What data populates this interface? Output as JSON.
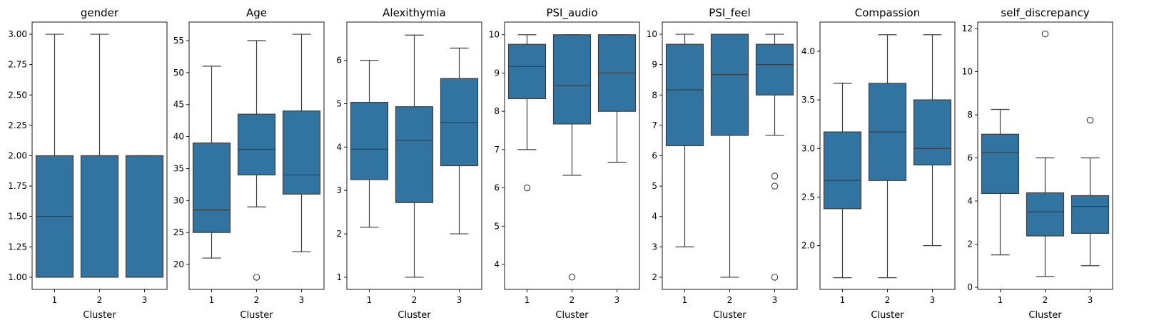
{
  "chart_data": [
    {
      "type": "box",
      "title": "gender",
      "xlabel": "Cluster",
      "categories": [
        "1",
        "2",
        "3"
      ],
      "ylim": [
        0.9,
        3.1
      ],
      "yticks": [
        1.0,
        1.25,
        1.5,
        1.75,
        2.0,
        2.25,
        2.5,
        2.75,
        3.0
      ],
      "ytick_labels": [
        "1.00",
        "1.25",
        "1.50",
        "1.75",
        "2.00",
        "2.25",
        "2.50",
        "2.75",
        "3.00"
      ],
      "boxes": [
        {
          "whislo": 1.0,
          "q1": 1.0,
          "med": 1.5,
          "q3": 2.0,
          "whishi": 3.0,
          "fliers": []
        },
        {
          "whislo": 1.0,
          "q1": 1.0,
          "med": 2.0,
          "q3": 2.0,
          "whishi": 3.0,
          "fliers": []
        },
        {
          "whislo": 1.0,
          "q1": 1.0,
          "med": 2.0,
          "q3": 2.0,
          "whishi": 2.0,
          "fliers": []
        }
      ]
    },
    {
      "type": "box",
      "title": "Age",
      "xlabel": "Cluster",
      "categories": [
        "1",
        "2",
        "3"
      ],
      "ylim": [
        16.1,
        57.9
      ],
      "yticks": [
        20,
        25,
        30,
        35,
        40,
        45,
        50,
        55
      ],
      "ytick_labels": [
        "20",
        "25",
        "30",
        "35",
        "40",
        "45",
        "50",
        "55"
      ],
      "boxes": [
        {
          "whislo": 21,
          "q1": 25,
          "med": 28.5,
          "q3": 39,
          "whishi": 51,
          "fliers": []
        },
        {
          "whislo": 29,
          "q1": 34,
          "med": 38,
          "q3": 43.5,
          "whishi": 55,
          "fliers": [
            18
          ]
        },
        {
          "whislo": 22,
          "q1": 31,
          "med": 34,
          "q3": 44,
          "whishi": 56,
          "fliers": []
        }
      ]
    },
    {
      "type": "box",
      "title": "Alexithymia",
      "xlabel": "Cluster",
      "categories": [
        "1",
        "2",
        "3"
      ],
      "ylim": [
        0.72,
        6.88
      ],
      "yticks": [
        1,
        2,
        3,
        4,
        5,
        6
      ],
      "ytick_labels": [
        "1",
        "2",
        "3",
        "4",
        "5",
        "6"
      ],
      "boxes": [
        {
          "whislo": 2.15,
          "q1": 3.25,
          "med": 3.95,
          "q3": 5.03,
          "whishi": 6.0,
          "fliers": []
        },
        {
          "whislo": 1.0,
          "q1": 2.72,
          "med": 4.15,
          "q3": 4.93,
          "whishi": 6.58,
          "fliers": []
        },
        {
          "whislo": 2.0,
          "q1": 3.57,
          "med": 4.57,
          "q3": 5.58,
          "whishi": 6.28,
          "fliers": []
        }
      ]
    },
    {
      "type": "box",
      "title": "PSI_audio",
      "xlabel": "Cluster",
      "categories": [
        "1",
        "2",
        "3"
      ],
      "ylim": [
        3.35,
        10.33
      ],
      "yticks": [
        4,
        5,
        6,
        7,
        8,
        9,
        10
      ],
      "ytick_labels": [
        "4",
        "5",
        "6",
        "7",
        "8",
        "9",
        "10"
      ],
      "boxes": [
        {
          "whislo": 7.0,
          "q1": 8.33,
          "med": 9.17,
          "q3": 9.75,
          "whishi": 10.0,
          "fliers": [
            6.0
          ]
        },
        {
          "whislo": 6.33,
          "q1": 7.67,
          "med": 8.67,
          "q3": 10.0,
          "whishi": 10.0,
          "fliers": [
            3.67
          ]
        },
        {
          "whislo": 6.67,
          "q1": 8.0,
          "med": 9.0,
          "q3": 10.0,
          "whishi": 10.0,
          "fliers": []
        }
      ]
    },
    {
      "type": "box",
      "title": "PSI_feel",
      "xlabel": "Cluster",
      "categories": [
        "1",
        "2",
        "3"
      ],
      "ylim": [
        1.6,
        10.4
      ],
      "yticks": [
        2,
        3,
        4,
        5,
        6,
        7,
        8,
        9,
        10
      ],
      "ytick_labels": [
        "2",
        "3",
        "4",
        "5",
        "6",
        "7",
        "8",
        "9",
        "10"
      ],
      "boxes": [
        {
          "whislo": 3.0,
          "q1": 6.33,
          "med": 8.17,
          "q3": 9.67,
          "whishi": 10.0,
          "fliers": []
        },
        {
          "whislo": 2.0,
          "q1": 6.67,
          "med": 8.67,
          "q3": 10.0,
          "whishi": 10.0,
          "fliers": []
        },
        {
          "whislo": 6.67,
          "q1": 8.0,
          "med": 9.0,
          "q3": 9.67,
          "whishi": 10.0,
          "fliers": [
            5.33,
            5.0,
            2.0
          ]
        }
      ]
    },
    {
      "type": "box",
      "title": "Compassion",
      "xlabel": "Cluster",
      "categories": [
        "1",
        "2",
        "3"
      ],
      "ylim": [
        1.55,
        4.3
      ],
      "yticks": [
        2.0,
        2.5,
        3.0,
        3.5,
        4.0
      ],
      "ytick_labels": [
        "2.0",
        "2.5",
        "3.0",
        "3.5",
        "4.0"
      ],
      "boxes": [
        {
          "whislo": 1.67,
          "q1": 2.38,
          "med": 2.67,
          "q3": 3.17,
          "whishi": 3.67,
          "fliers": []
        },
        {
          "whislo": 1.67,
          "q1": 2.67,
          "med": 3.17,
          "q3": 3.67,
          "whishi": 4.17,
          "fliers": []
        },
        {
          "whislo": 2.0,
          "q1": 2.83,
          "med": 3.0,
          "q3": 3.5,
          "whishi": 4.17,
          "fliers": []
        }
      ]
    },
    {
      "type": "box",
      "title": "self_discrepancy",
      "xlabel": "Cluster",
      "categories": [
        "1",
        "2",
        "3"
      ],
      "ylim": [
        -0.1,
        12.3
      ],
      "yticks": [
        0,
        2,
        4,
        6,
        8,
        10,
        12
      ],
      "ytick_labels": [
        "0",
        "2",
        "4",
        "6",
        "8",
        "10",
        "12"
      ],
      "boxes": [
        {
          "whislo": 1.5,
          "q1": 4.35,
          "med": 6.25,
          "q3": 7.1,
          "whishi": 8.25,
          "fliers": []
        },
        {
          "whislo": 0.5,
          "q1": 2.38,
          "med": 3.5,
          "q3": 4.38,
          "whishi": 6.0,
          "fliers": [
            11.75
          ]
        },
        {
          "whislo": 1.0,
          "q1": 2.5,
          "med": 3.75,
          "q3": 4.25,
          "whishi": 6.0,
          "fliers": [
            7.75
          ]
        }
      ]
    }
  ],
  "colors": {
    "box_fill": "#3274a1",
    "line": "#3d3d3d"
  }
}
